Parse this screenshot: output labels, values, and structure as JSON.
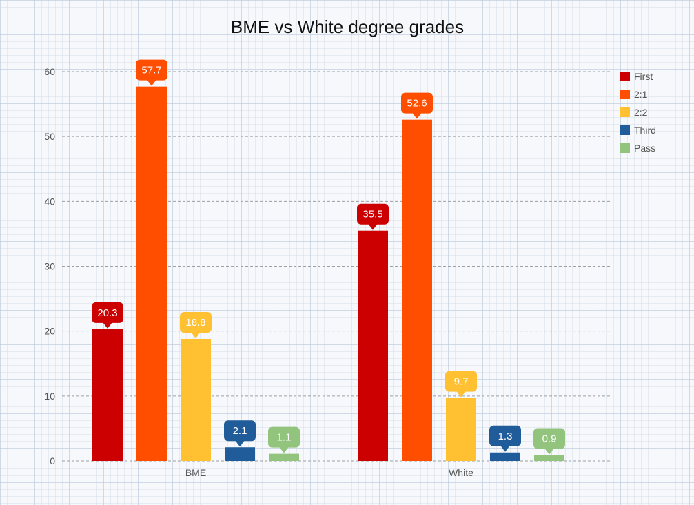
{
  "chart_data": {
    "type": "bar",
    "title": "BME vs White degree grades",
    "xlabel": "",
    "ylabel": "",
    "categories": [
      "BME",
      "White"
    ],
    "series": [
      {
        "name": "First",
        "color": "#cc0000",
        "values": [
          20.3,
          35.5
        ]
      },
      {
        "name": "2:1",
        "color": "#ff4e00",
        "values": [
          57.7,
          52.6
        ]
      },
      {
        "name": "2:2",
        "color": "#ffc132",
        "values": [
          18.8,
          9.7
        ]
      },
      {
        "name": "Third",
        "color": "#1f5c99",
        "values": [
          2.1,
          1.3
        ]
      },
      {
        "name": "Pass",
        "color": "#93c47d",
        "values": [
          1.1,
          0.9
        ]
      }
    ],
    "ylim": [
      0,
      60
    ],
    "yticks": [
      0,
      10,
      20,
      30,
      40,
      50,
      60
    ],
    "grid": true,
    "legend": "right",
    "data_labels": true
  }
}
